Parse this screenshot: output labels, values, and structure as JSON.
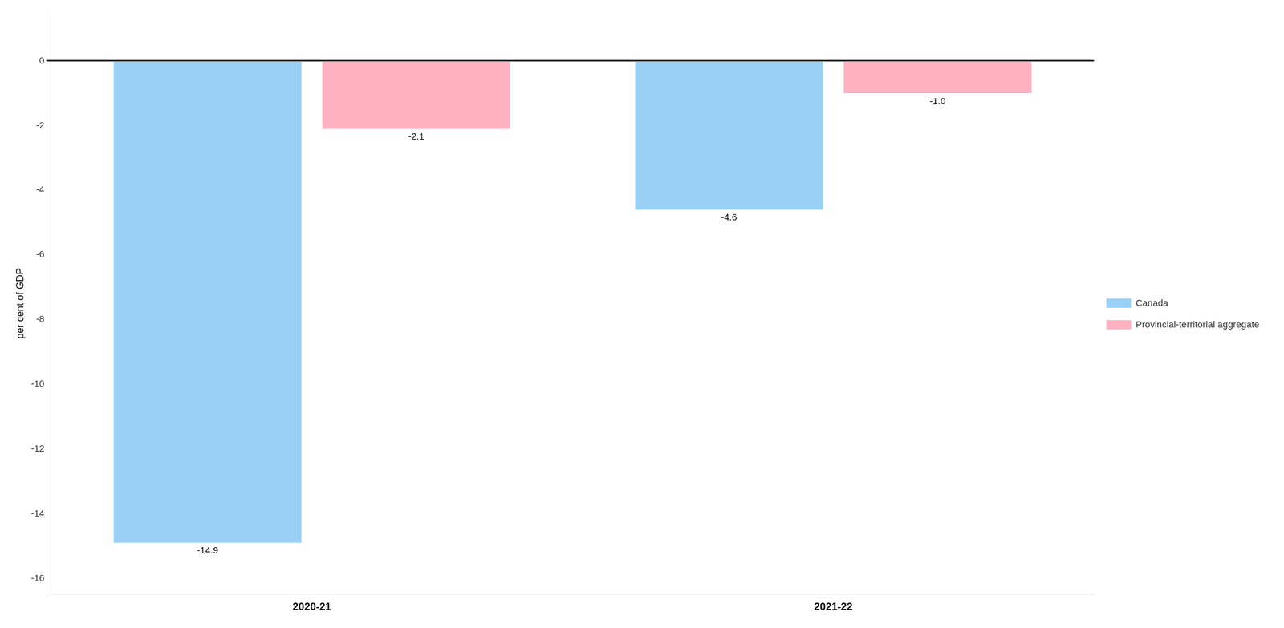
{
  "chart_data": {
    "type": "bar",
    "categories": [
      "2020-21",
      "2021-22"
    ],
    "series": [
      {
        "name": "Canada",
        "values": [
          -14.9,
          -4.6
        ]
      },
      {
        "name": "Provincial-territorial aggregate",
        "values": [
          -2.1,
          -1.0
        ],
        "value_labels": [
          "-2.1",
          "-1.0"
        ]
      }
    ],
    "ylabel": "per cent of GDP",
    "ylim": [
      -16.5,
      1.5
    ],
    "yticks": [
      0,
      -2,
      -4,
      -6,
      -8,
      -10,
      -12,
      -14,
      -16
    ],
    "grid": false,
    "legend": "right",
    "data_labels": true
  }
}
